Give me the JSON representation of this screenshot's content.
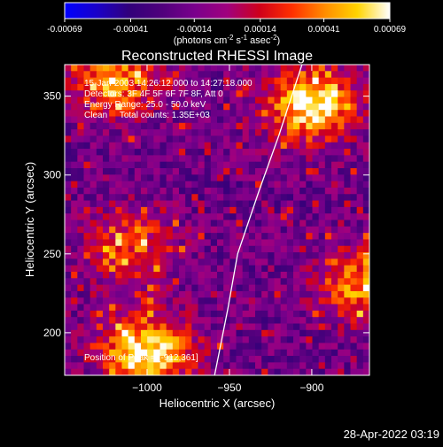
{
  "chart_data": {
    "type": "heatmap",
    "title": "Reconstructed RHESSI Image",
    "xlabel": "Heliocentric X (arcsec)",
    "ylabel": "Heliocentric Y (arcsec)",
    "xlim": [
      -1050,
      -865
    ],
    "ylim": [
      173,
      370
    ],
    "xticks": [
      -1000,
      -950,
      -900
    ],
    "yticks": [
      200,
      250,
      300,
      350
    ],
    "colorbar": {
      "ticks": [
        -0.00069,
        -0.00041,
        -0.00014,
        0.00014,
        0.00041,
        0.00069
      ],
      "tick_labels": [
        "-0.00069",
        "-0.00041",
        "-0.00014",
        "0.00014",
        "0.00041",
        "0.00069"
      ],
      "label_main": "(photons cm",
      "label_exp1": "-2",
      "label_mid": " s",
      "label_exp2": "-1",
      "label_tail": " asec",
      "label_exp3": "-2",
      "label_end": ")",
      "colormap": [
        "#0000ff",
        "#1a00c8",
        "#32007a",
        "#50007c",
        "#7a008c",
        "#a0007e",
        "#d0001a",
        "#ff3000",
        "#ff8c00",
        "#ffd400",
        "#ffffff"
      ]
    },
    "annotations": [
      "15-Jan-2003 14:26:12.000 to 14:27:18.000",
      "Detectors: 3F 4F 5F 6F 7F 8F, Att 0",
      "Energy Range: 25.0 - 50.0 keV",
      "Clean     Total counts: 1.35E+03"
    ],
    "peak_label": "Position of Peak = [-912,361]",
    "limb_points": [
      [
        -959,
        173
      ],
      [
        -951,
        215
      ],
      [
        -945,
        250
      ],
      [
        -932,
        290
      ],
      [
        -920,
        325
      ],
      [
        -906,
        370
      ]
    ],
    "bright_regions": [
      {
        "name": "top-right",
        "x": -900,
        "y": 345,
        "strength": 1.0
      },
      {
        "name": "top-left",
        "x": -1020,
        "y": 360,
        "strength": 0.75
      },
      {
        "name": "left-middle",
        "x": -1010,
        "y": 255,
        "strength": 0.55
      },
      {
        "name": "bottom-left",
        "x": -1000,
        "y": 188,
        "strength": 1.0
      },
      {
        "name": "right-edge",
        "x": -870,
        "y": 230,
        "strength": 0.7
      }
    ]
  },
  "timestamp": "28-Apr-2022 03:19"
}
